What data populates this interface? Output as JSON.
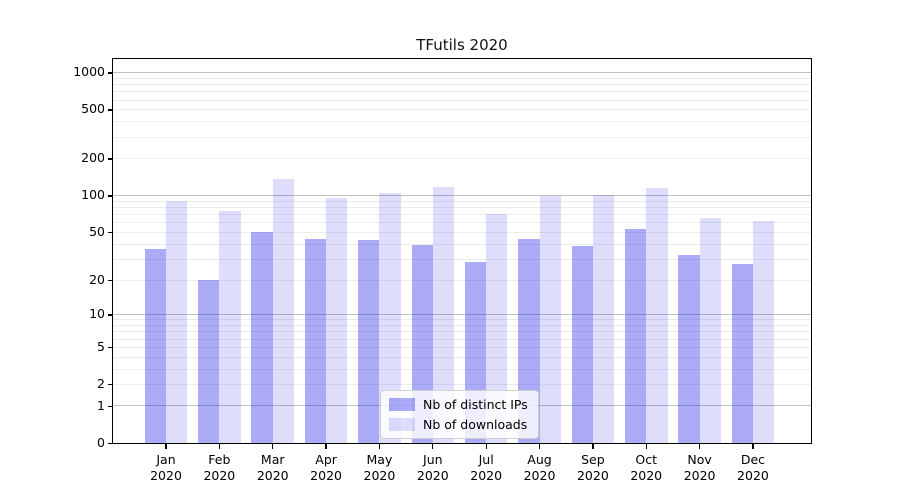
{
  "title": "TFutils 2020",
  "chart_data": {
    "type": "bar",
    "title": "TFutils 2020",
    "categories": [
      "Jan",
      "Feb",
      "Mar",
      "Apr",
      "May",
      "Jun",
      "Jul",
      "Aug",
      "Sep",
      "Oct",
      "Nov",
      "Dec"
    ],
    "x_year_label": "2020",
    "series": [
      {
        "name": "Nb of distinct IPs",
        "color": "rgba(10,10,235,0.34)",
        "values": [
          36,
          20,
          50,
          44,
          43,
          39,
          28,
          44,
          38,
          53,
          32,
          27
        ]
      },
      {
        "name": "Nb of downloads",
        "color": "rgba(10,10,235,0.135)",
        "values": [
          90,
          75,
          136,
          95,
          105,
          117,
          70,
          99,
          101,
          115,
          65,
          62
        ]
      }
    ],
    "yscale": "log1p",
    "y_ticks": [
      0,
      1,
      2,
      5,
      10,
      20,
      50,
      100,
      200,
      500,
      1000
    ],
    "y_major_gridlines": [
      1,
      10,
      100,
      1000
    ],
    "ylim": [
      0,
      1280
    ],
    "grid": true,
    "legend_position": "lower center"
  },
  "colors": {
    "bar_ips": "rgba(10,10,235,0.34)",
    "bar_downloads": "rgba(10,10,235,0.135)",
    "grid_major": "#c2c2c2",
    "grid_minor": "#ededed",
    "frame": "#000000",
    "background": "#ffffff"
  }
}
